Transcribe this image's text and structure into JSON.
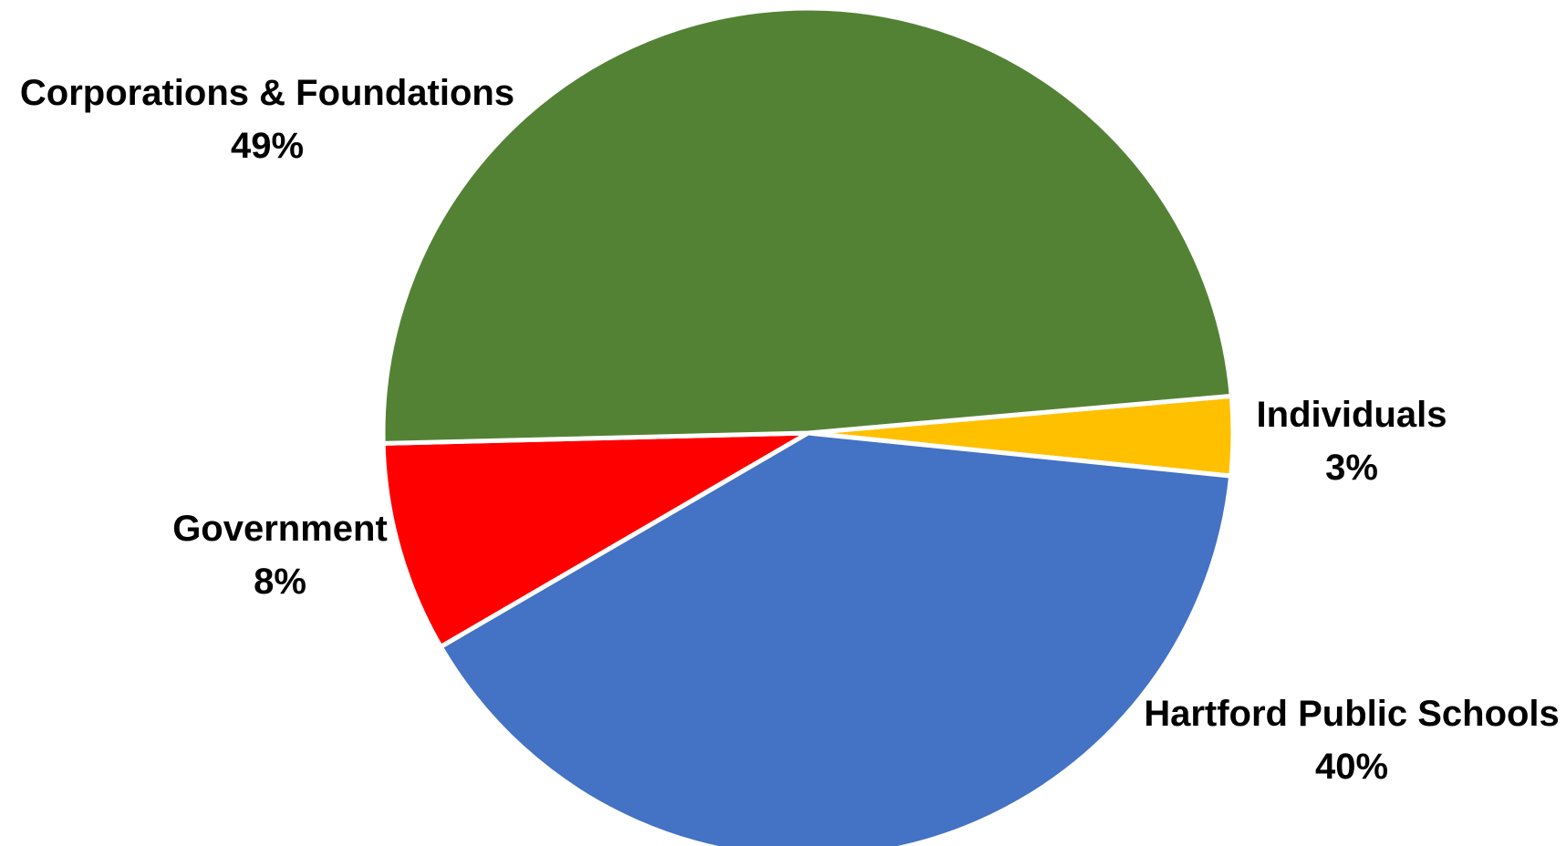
{
  "chart_data": {
    "type": "pie",
    "title": "",
    "unit": "%",
    "slices": [
      {
        "label": "Individuals",
        "value": 3,
        "color": "#FFC000"
      },
      {
        "label": "Hartford Public Schools",
        "value": 40,
        "color": "#4472C4"
      },
      {
        "label": "Government",
        "value": 8,
        "color": "#FF0000"
      },
      {
        "label": "Corporations & Foundations",
        "value": 49,
        "color": "#548235"
      }
    ]
  }
}
